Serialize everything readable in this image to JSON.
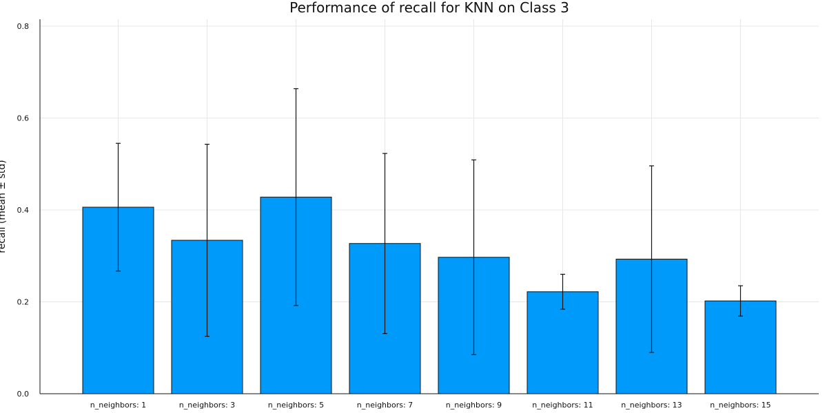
{
  "chart_data": {
    "type": "bar",
    "title": "Performance of recall for KNN on Class 3",
    "ylabel": "recall (mean ± std)",
    "categories": [
      "n_neighbors: 1",
      "n_neighbors: 3",
      "n_neighbors: 5",
      "n_neighbors: 7",
      "n_neighbors: 9",
      "n_neighbors: 11",
      "n_neighbors: 13",
      "n_neighbors: 15"
    ],
    "values": [
      0.406,
      0.334,
      0.428,
      0.327,
      0.297,
      0.222,
      0.293,
      0.202
    ],
    "std": [
      0.139,
      0.209,
      0.236,
      0.196,
      0.212,
      0.038,
      0.203,
      0.033
    ],
    "ylim": [
      0,
      0.8
    ],
    "yticks": [
      0.0,
      0.2,
      0.4,
      0.6,
      0.8
    ],
    "ytick_labels": [
      "0.0",
      "0.2",
      "0.4",
      "0.6",
      "0.8"
    ],
    "grid": true,
    "bar_color": "#009AFA"
  }
}
